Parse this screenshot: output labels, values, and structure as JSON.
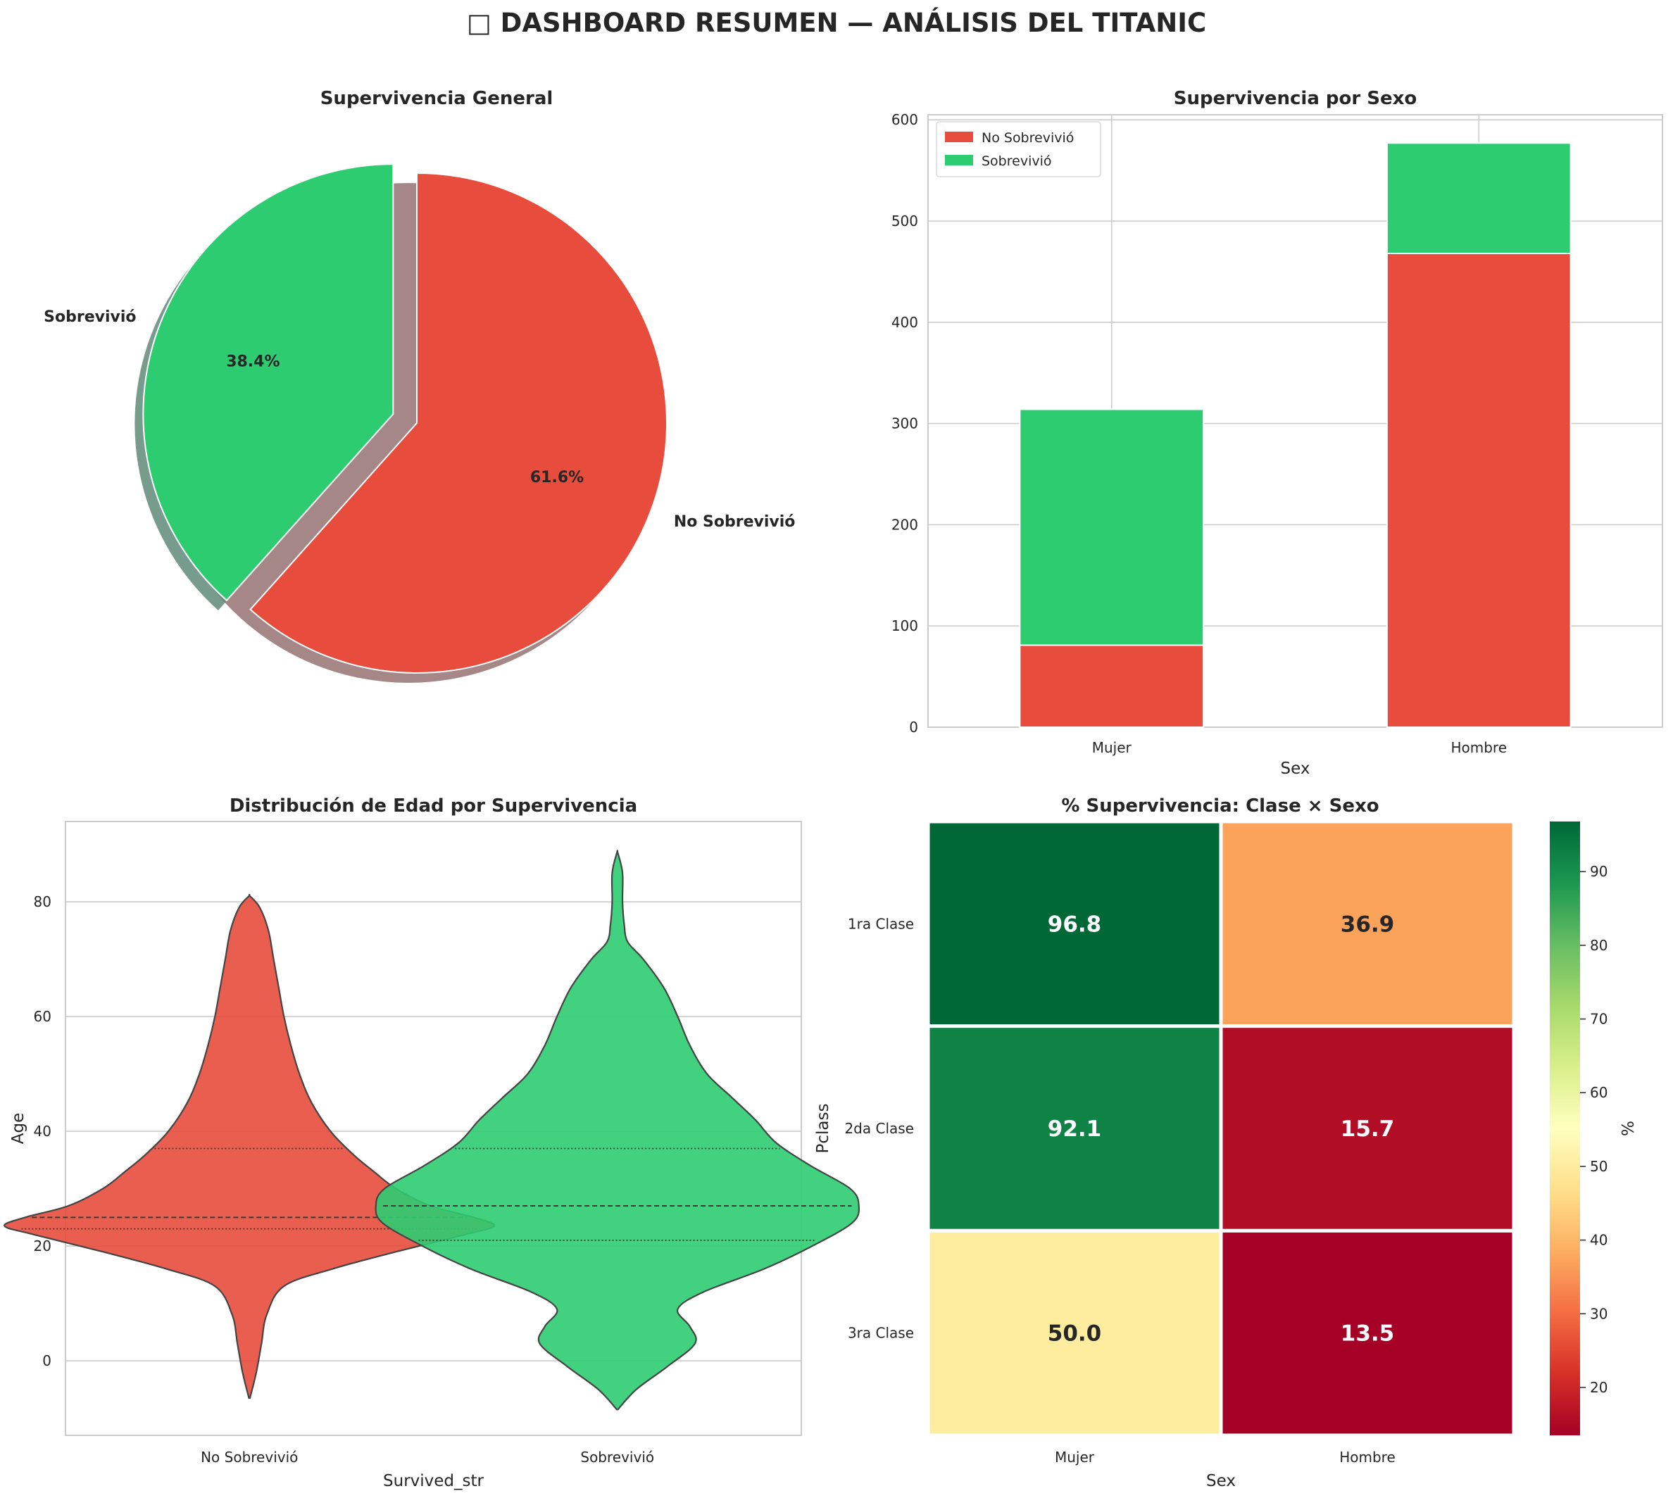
{
  "title": "□ DASHBOARD RESUMEN — ANÁLISIS DEL TITANIC",
  "colors": {
    "red": "#e74c3c",
    "green": "#2ecc71",
    "grid": "#cccccc",
    "text": "#262626"
  },
  "chart_data": [
    {
      "type": "pie",
      "title": "Supervivencia General",
      "labels": [
        "No Sobrevivió",
        "Sobrevivió"
      ],
      "values": [
        61.6,
        38.4
      ],
      "value_labels": [
        "61.6%",
        "38.4%"
      ],
      "colors": [
        "#e74c3c",
        "#2ecc71"
      ],
      "exploded": "Sobrevivió",
      "shadow": true,
      "start_angle_deg": 90
    },
    {
      "type": "bar",
      "stacked": true,
      "title": "Supervivencia por Sexo",
      "xlabel": "Sex",
      "ylabel": "",
      "categories": [
        "Mujer",
        "Hombre"
      ],
      "series": [
        {
          "name": "No Sobrevivió",
          "values": [
            81,
            468
          ],
          "color": "#e74c3c"
        },
        {
          "name": "Sobrevivió",
          "values": [
            233,
            109
          ],
          "color": "#2ecc71"
        }
      ],
      "ylim": [
        0,
        605
      ],
      "yticks": [
        0,
        100,
        200,
        300,
        400,
        500,
        600
      ],
      "legend": "top-left",
      "grid": true
    },
    {
      "type": "violin",
      "title": "Distribución de Edad por Supervivencia",
      "xlabel": "Survived_str",
      "ylabel": "Age",
      "categories": [
        "No Sobrevivió",
        "Sobrevivió"
      ],
      "colors": [
        "#e74c3c",
        "#2ecc71"
      ],
      "ylim": [
        -13,
        94
      ],
      "yticks": [
        0,
        20,
        40,
        60,
        80
      ],
      "grid": true,
      "series": [
        {
          "name": "No Sobrevivió",
          "quartiles": [
            23,
            25,
            37
          ],
          "range": [
            -6.5,
            81
          ],
          "density_profile": [
            [
              -6.5,
              0.3
            ],
            [
              -2,
              4
            ],
            [
              3,
              7
            ],
            [
              8,
              10
            ],
            [
              13,
              20
            ],
            [
              16,
              48
            ],
            [
              19,
              85
            ],
            [
              22,
              125
            ],
            [
              23.5,
              142
            ],
            [
              25,
              130
            ],
            [
              27,
              105
            ],
            [
              30,
              85
            ],
            [
              33,
              72
            ],
            [
              36,
              60
            ],
            [
              40,
              47
            ],
            [
              45,
              36
            ],
            [
              50,
              29
            ],
            [
              55,
              24
            ],
            [
              60,
              20
            ],
            [
              65,
              17
            ],
            [
              70,
              14
            ],
            [
              75,
              11
            ],
            [
              79,
              6
            ],
            [
              81,
              0.3
            ]
          ]
        },
        {
          "name": "Sobrevivió",
          "quartiles": [
            21,
            27,
            37
          ],
          "range": [
            -8.5,
            88.5
          ],
          "density_profile": [
            [
              -8.5,
              0.3
            ],
            [
              -5,
              11
            ],
            [
              -1,
              29
            ],
            [
              3,
              45
            ],
            [
              6,
              42
            ],
            [
              9,
              35
            ],
            [
              12,
              50
            ],
            [
              16,
              85
            ],
            [
              20,
              113
            ],
            [
              24,
              136
            ],
            [
              27,
              140
            ],
            [
              30,
              135
            ],
            [
              34,
              112
            ],
            [
              38,
              92
            ],
            [
              42,
              80
            ],
            [
              46,
              66
            ],
            [
              50,
              52
            ],
            [
              55,
              42
            ],
            [
              60,
              35
            ],
            [
              65,
              27
            ],
            [
              70,
              15
            ],
            [
              73,
              6
            ],
            [
              76,
              4
            ],
            [
              80,
              3
            ],
            [
              85,
              3
            ],
            [
              88.5,
              0.3
            ]
          ]
        }
      ]
    },
    {
      "type": "heatmap",
      "title": "% Supervivencia: Clase × Sexo",
      "xlabel": "Sex",
      "ylabel": "Pclass",
      "x": [
        "Mujer",
        "Hombre"
      ],
      "y": [
        "1ra Clase",
        "2da Clase",
        "3ra Clase"
      ],
      "values": [
        [
          96.8,
          36.9
        ],
        [
          92.1,
          15.7
        ],
        [
          50.0,
          13.5
        ]
      ],
      "value_labels": [
        [
          "96.8",
          "36.9"
        ],
        [
          "92.1",
          "15.7"
        ],
        [
          "50.0",
          "13.5"
        ]
      ],
      "colormap": "RdYlGn",
      "vmin": 13.5,
      "vmax": 96.8,
      "colorbar_label": "%",
      "colorbar_ticks": [
        20,
        30,
        40,
        50,
        60,
        70,
        80,
        90
      ]
    }
  ]
}
